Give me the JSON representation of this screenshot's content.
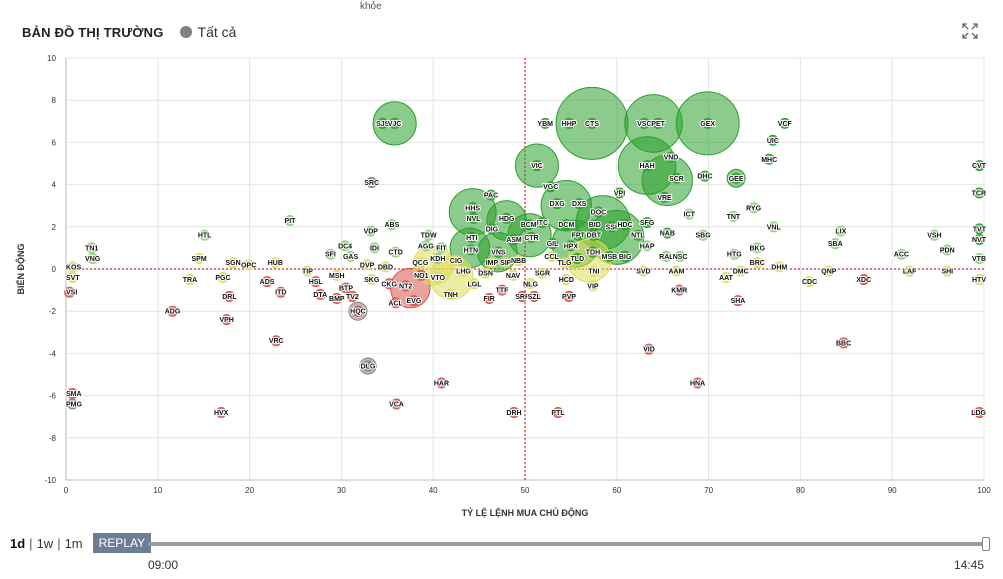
{
  "top_cut_text": "khỏe",
  "header": {
    "title": "BẢN ĐỒ THỊ TRƯỜNG",
    "filter_label": "Tất cả"
  },
  "controls": {
    "periods": [
      "1d",
      "1w",
      "1m"
    ],
    "active_period": "1d",
    "replay_label": "REPLAY",
    "time_start": "09:00",
    "time_end": "14:45",
    "progress": 1.0
  },
  "colors": {
    "green": "#2ca02c",
    "lightgreen": "#8bd17c",
    "yellow": "#dddd55",
    "red": "#d9534f",
    "gray": "#8c7f7f",
    "refline": "#cc0000"
  },
  "chart_data": {
    "type": "scatter",
    "xlabel": "TỶ LỆ LỆNH MUA CHỦ ĐỘNG",
    "ylabel": "BIẾN ĐỘNG",
    "xlim": [
      0,
      100
    ],
    "ylim": [
      -10,
      10
    ],
    "xticks": [
      0,
      10,
      20,
      30,
      40,
      50,
      60,
      70,
      80,
      90,
      100
    ],
    "yticks": [
      -10,
      -8,
      -6,
      -4,
      -2,
      0,
      2,
      4,
      6,
      8,
      10
    ],
    "grid": true,
    "reference_lines": {
      "x": 50,
      "y": 0
    },
    "points": [
      {
        "label": "SJS",
        "x": 34.5,
        "y": 6.9,
        "c": "green"
      },
      {
        "label": "VJC",
        "x": 35.8,
        "y": 6.9,
        "c": "green"
      },
      {
        "label": "YBM",
        "x": 52.2,
        "y": 6.9,
        "c": "green"
      },
      {
        "label": "HHP",
        "x": 54.8,
        "y": 6.9,
        "c": "green"
      },
      {
        "label": "CTS",
        "x": 57.3,
        "y": 6.9,
        "c": "green"
      },
      {
        "label": "VSC",
        "x": 63.0,
        "y": 6.9,
        "c": "green"
      },
      {
        "label": "PET",
        "x": 64.5,
        "y": 6.9,
        "c": "green"
      },
      {
        "label": "GEX",
        "x": 69.9,
        "y": 6.9,
        "c": "green"
      },
      {
        "label": "VCF",
        "x": 78.3,
        "y": 6.9,
        "c": "green"
      },
      {
        "label": "UIC",
        "x": 77.0,
        "y": 6.1,
        "c": "green"
      },
      {
        "label": "MHC",
        "x": 76.6,
        "y": 5.2,
        "c": "green"
      },
      {
        "label": "CVT",
        "x": 99.5,
        "y": 4.9,
        "c": "green"
      },
      {
        "label": "TCR",
        "x": 99.5,
        "y": 3.6,
        "c": "green"
      },
      {
        "label": "VIC",
        "x": 51.3,
        "y": 4.9,
        "c": "green"
      },
      {
        "label": "HAH",
        "x": 63.3,
        "y": 4.9,
        "c": "green"
      },
      {
        "label": "VND",
        "x": 65.9,
        "y": 5.3,
        "c": "green"
      },
      {
        "label": "SCR",
        "x": 66.5,
        "y": 4.3,
        "c": "green"
      },
      {
        "label": "DHC",
        "x": 69.6,
        "y": 4.4,
        "c": "green"
      },
      {
        "label": "GEE",
        "x": 73.0,
        "y": 4.3,
        "c": "green"
      },
      {
        "label": "SRC",
        "x": 33.3,
        "y": 4.1,
        "c": "gray"
      },
      {
        "label": "VGC",
        "x": 52.8,
        "y": 3.9,
        "c": "green"
      },
      {
        "label": "PAC",
        "x": 46.3,
        "y": 3.5,
        "c": "green"
      },
      {
        "label": "VPI",
        "x": 60.3,
        "y": 3.6,
        "c": "green"
      },
      {
        "label": "VRE",
        "x": 65.2,
        "y": 3.4,
        "c": "green"
      },
      {
        "label": "DXG",
        "x": 53.5,
        "y": 3.1,
        "c": "green"
      },
      {
        "label": "DXS",
        "x": 55.9,
        "y": 3.1,
        "c": "green"
      },
      {
        "label": "DOC",
        "x": 58.0,
        "y": 2.7,
        "c": "green"
      },
      {
        "label": "HHS",
        "x": 44.3,
        "y": 2.9,
        "c": "green"
      },
      {
        "label": "NVL",
        "x": 44.4,
        "y": 2.4,
        "c": "green"
      },
      {
        "label": "HDG",
        "x": 48.0,
        "y": 2.4,
        "c": "green"
      },
      {
        "label": "ITC",
        "x": 51.9,
        "y": 2.2,
        "c": "green"
      },
      {
        "label": "DCM",
        "x": 54.5,
        "y": 2.1,
        "c": "green"
      },
      {
        "label": "BID",
        "x": 57.6,
        "y": 2.1,
        "c": "green"
      },
      {
        "label": "SSI",
        "x": 59.4,
        "y": 2.0,
        "c": "green"
      },
      {
        "label": "HDC",
        "x": 60.9,
        "y": 2.1,
        "c": "green"
      },
      {
        "label": "SFG",
        "x": 63.3,
        "y": 2.2,
        "c": "green"
      },
      {
        "label": "ICT",
        "x": 67.9,
        "y": 2.6,
        "c": "lightgreen"
      },
      {
        "label": "TNT",
        "x": 72.7,
        "y": 2.5,
        "c": "lightgreen"
      },
      {
        "label": "RYG",
        "x": 74.9,
        "y": 2.9,
        "c": "lightgreen"
      },
      {
        "label": "VNL",
        "x": 77.1,
        "y": 2.0,
        "c": "lightgreen"
      },
      {
        "label": "LIX",
        "x": 84.4,
        "y": 1.8,
        "c": "lightgreen"
      },
      {
        "label": "TVT",
        "x": 99.5,
        "y": 1.9,
        "c": "green"
      },
      {
        "label": "PIT",
        "x": 24.4,
        "y": 2.3,
        "c": "lightgreen"
      },
      {
        "label": "ABS",
        "x": 35.5,
        "y": 2.1,
        "c": "lightgreen"
      },
      {
        "label": "VDP",
        "x": 33.2,
        "y": 1.8,
        "c": "lightgreen"
      },
      {
        "label": "HTL",
        "x": 15.1,
        "y": 1.6,
        "c": "lightgreen"
      },
      {
        "label": "TDW",
        "x": 39.5,
        "y": 1.6,
        "c": "lightgreen"
      },
      {
        "label": "DIG",
        "x": 46.4,
        "y": 1.9,
        "c": "green"
      },
      {
        "label": "HTI",
        "x": 44.2,
        "y": 1.5,
        "c": "green"
      },
      {
        "label": "ASM",
        "x": 48.8,
        "y": 1.4,
        "c": "green"
      },
      {
        "label": "BCM",
        "x": 50.4,
        "y": 2.1,
        "c": "green"
      },
      {
        "label": "CTR",
        "x": 50.7,
        "y": 1.5,
        "c": "green"
      },
      {
        "label": "FPT",
        "x": 55.8,
        "y": 1.6,
        "c": "green"
      },
      {
        "label": "DBT",
        "x": 57.5,
        "y": 1.6,
        "c": "green"
      },
      {
        "label": "NTL",
        "x": 62.3,
        "y": 1.6,
        "c": "green"
      },
      {
        "label": "NAB",
        "x": 65.5,
        "y": 1.7,
        "c": "green"
      },
      {
        "label": "SBG",
        "x": 69.4,
        "y": 1.6,
        "c": "lightgreen"
      },
      {
        "label": "VSH",
        "x": 94.6,
        "y": 1.6,
        "c": "lightgreen"
      },
      {
        "label": "NVT",
        "x": 99.5,
        "y": 1.4,
        "c": "green"
      },
      {
        "label": "DC4",
        "x": 30.4,
        "y": 1.1,
        "c": "lightgreen"
      },
      {
        "label": "AGG",
        "x": 39.2,
        "y": 1.1,
        "c": "lightgreen"
      },
      {
        "label": "FIT",
        "x": 40.9,
        "y": 1.0,
        "c": "lightgreen"
      },
      {
        "label": "IDI",
        "x": 33.6,
        "y": 1.0,
        "c": "lightgreen"
      },
      {
        "label": "GIL",
        "x": 53.0,
        "y": 1.2,
        "c": "green"
      },
      {
        "label": "HPX",
        "x": 55.0,
        "y": 1.1,
        "c": "green"
      },
      {
        "label": "HAP",
        "x": 63.3,
        "y": 1.1,
        "c": "lightgreen"
      },
      {
        "label": "BKG",
        "x": 75.3,
        "y": 1.0,
        "c": "lightgreen"
      },
      {
        "label": "SBA",
        "x": 83.8,
        "y": 1.2,
        "c": "lightgreen"
      },
      {
        "label": "PDN",
        "x": 96.0,
        "y": 0.9,
        "c": "lightgreen"
      },
      {
        "label": "TN1",
        "x": 2.8,
        "y": 1.0,
        "c": "lightgreen"
      },
      {
        "label": "SFI",
        "x": 28.8,
        "y": 0.7,
        "c": "lightgreen"
      },
      {
        "label": "GAS",
        "x": 31.0,
        "y": 0.6,
        "c": "lightgreen"
      },
      {
        "label": "CTD",
        "x": 35.9,
        "y": 0.8,
        "c": "lightgreen"
      },
      {
        "label": "KDH",
        "x": 40.5,
        "y": 0.5,
        "c": "lightgreen"
      },
      {
        "label": "HTN",
        "x": 44.1,
        "y": 0.9,
        "c": "green"
      },
      {
        "label": "VNS",
        "x": 47.1,
        "y": 0.8,
        "c": "green"
      },
      {
        "label": "TDH",
        "x": 57.4,
        "y": 0.8,
        "c": "green"
      },
      {
        "label": "MSB",
        "x": 59.2,
        "y": 0.6,
        "c": "green"
      },
      {
        "label": "BIG",
        "x": 60.9,
        "y": 0.6,
        "c": "green"
      },
      {
        "label": "RAL",
        "x": 65.4,
        "y": 0.6,
        "c": "lightgreen"
      },
      {
        "label": "NSC",
        "x": 66.9,
        "y": 0.6,
        "c": "lightgreen"
      },
      {
        "label": "HTG",
        "x": 72.8,
        "y": 0.7,
        "c": "lightgreen"
      },
      {
        "label": "ACC",
        "x": 91.0,
        "y": 0.7,
        "c": "lightgreen"
      },
      {
        "label": "VTB",
        "x": 99.5,
        "y": 0.5,
        "c": "lightgreen"
      },
      {
        "label": "VNG",
        "x": 2.9,
        "y": 0.5,
        "c": "lightgreen"
      },
      {
        "label": "SPM",
        "x": 14.5,
        "y": 0.5,
        "c": "yellow"
      },
      {
        "label": "SGN",
        "x": 18.2,
        "y": 0.3,
        "c": "yellow"
      },
      {
        "label": "OPC",
        "x": 19.9,
        "y": 0.2,
        "c": "yellow"
      },
      {
        "label": "HUB",
        "x": 22.8,
        "y": 0.3,
        "c": "yellow"
      },
      {
        "label": "DVP",
        "x": 32.8,
        "y": 0.2,
        "c": "yellow"
      },
      {
        "label": "DBD",
        "x": 34.8,
        "y": 0.1,
        "c": "yellow"
      },
      {
        "label": "QCG",
        "x": 38.6,
        "y": 0.3,
        "c": "yellow"
      },
      {
        "label": "CIG",
        "x": 42.5,
        "y": 0.4,
        "c": "yellow"
      },
      {
        "label": "IMP",
        "x": 46.4,
        "y": 0.3,
        "c": "yellow"
      },
      {
        "label": "SIP",
        "x": 47.9,
        "y": 0.3,
        "c": "yellow"
      },
      {
        "label": "NBB",
        "x": 49.3,
        "y": 0.4,
        "c": "yellow"
      },
      {
        "label": "CCL",
        "x": 52.9,
        "y": 0.6,
        "c": "yellow"
      },
      {
        "label": "TLG",
        "x": 54.3,
        "y": 0.3,
        "c": "yellow"
      },
      {
        "label": "TLD",
        "x": 55.7,
        "y": 0.5,
        "c": "green"
      },
      {
        "label": "BRC",
        "x": 75.3,
        "y": 0.3,
        "c": "yellow"
      },
      {
        "label": "KOS",
        "x": 0.7,
        "y": 0.1,
        "c": "yellow"
      },
      {
        "label": "TIP",
        "x": 26.3,
        "y": -0.1,
        "c": "yellow"
      },
      {
        "label": "LHG",
        "x": 43.3,
        "y": -0.1,
        "c": "yellow"
      },
      {
        "label": "DSN",
        "x": 45.7,
        "y": -0.2,
        "c": "yellow"
      },
      {
        "label": "NAV",
        "x": 48.7,
        "y": -0.3,
        "c": "yellow"
      },
      {
        "label": "SGR",
        "x": 51.9,
        "y": -0.2,
        "c": "yellow"
      },
      {
        "label": "TNI",
        "x": 57.5,
        "y": -0.1,
        "c": "yellow"
      },
      {
        "label": "SVD",
        "x": 62.9,
        "y": -0.1,
        "c": "yellow"
      },
      {
        "label": "AAM",
        "x": 66.5,
        "y": -0.1,
        "c": "yellow"
      },
      {
        "label": "DMC",
        "x": 73.5,
        "y": -0.1,
        "c": "yellow"
      },
      {
        "label": "DHM",
        "x": 77.7,
        "y": 0.1,
        "c": "yellow"
      },
      {
        "label": "QNP",
        "x": 83.1,
        "y": -0.1,
        "c": "yellow"
      },
      {
        "label": "LAF",
        "x": 91.9,
        "y": -0.1,
        "c": "yellow"
      },
      {
        "label": "SHI",
        "x": 96.0,
        "y": -0.1,
        "c": "yellow"
      },
      {
        "label": "MSH",
        "x": 29.5,
        "y": -0.3,
        "c": "yellow"
      },
      {
        "label": "SKG",
        "x": 33.3,
        "y": -0.5,
        "c": "yellow"
      },
      {
        "label": "NO1",
        "x": 38.7,
        "y": -0.3,
        "c": "red"
      },
      {
        "label": "VTO",
        "x": 40.5,
        "y": -0.4,
        "c": "yellow"
      },
      {
        "label": "AAT",
        "x": 71.9,
        "y": -0.4,
        "c": "yellow"
      },
      {
        "label": "SVT",
        "x": 0.7,
        "y": -0.4,
        "c": "yellow"
      },
      {
        "label": "TRA",
        "x": 13.5,
        "y": -0.5,
        "c": "yellow"
      },
      {
        "label": "PGC",
        "x": 17.1,
        "y": -0.4,
        "c": "yellow"
      },
      {
        "label": "HSL",
        "x": 27.2,
        "y": -0.6,
        "c": "red"
      },
      {
        "label": "ADS",
        "x": 21.9,
        "y": -0.6,
        "c": "red"
      },
      {
        "label": "CKG",
        "x": 35.2,
        "y": -0.7,
        "c": "red"
      },
      {
        "label": "NT2",
        "x": 37.0,
        "y": -0.8,
        "c": "red"
      },
      {
        "label": "LGL",
        "x": 44.5,
        "y": -0.7,
        "c": "yellow"
      },
      {
        "label": "NLG",
        "x": 50.6,
        "y": -0.7,
        "c": "yellow"
      },
      {
        "label": "HCD",
        "x": 54.5,
        "y": -0.5,
        "c": "yellow"
      },
      {
        "label": "VIP",
        "x": 57.4,
        "y": -0.8,
        "c": "yellow"
      },
      {
        "label": "CDC",
        "x": 81.0,
        "y": -0.6,
        "c": "yellow"
      },
      {
        "label": "XDC",
        "x": 86.9,
        "y": -0.5,
        "c": "red"
      },
      {
        "label": "HTV",
        "x": 99.5,
        "y": -0.5,
        "c": "yellow"
      },
      {
        "label": "BTP",
        "x": 30.5,
        "y": -0.9,
        "c": "red"
      },
      {
        "label": "ITD",
        "x": 23.4,
        "y": -1.1,
        "c": "red"
      },
      {
        "label": "TTF",
        "x": 47.5,
        "y": -1.0,
        "c": "red"
      },
      {
        "label": "KMR",
        "x": 66.8,
        "y": -1.0,
        "c": "red"
      },
      {
        "label": "VSI",
        "x": 0.4,
        "y": -1.1,
        "c": "red"
      },
      {
        "label": "DRL",
        "x": 17.8,
        "y": -1.3,
        "c": "red"
      },
      {
        "label": "DTA",
        "x": 27.7,
        "y": -1.2,
        "c": "red"
      },
      {
        "label": "TV2",
        "x": 31.2,
        "y": -1.3,
        "c": "red"
      },
      {
        "label": "TNH",
        "x": 41.9,
        "y": -1.2,
        "c": "yellow"
      },
      {
        "label": "SRF",
        "x": 49.7,
        "y": -1.3,
        "c": "red"
      },
      {
        "label": "SZL",
        "x": 51.0,
        "y": -1.3,
        "c": "red"
      },
      {
        "label": "PVP",
        "x": 54.8,
        "y": -1.3,
        "c": "red"
      },
      {
        "label": "BMP",
        "x": 29.5,
        "y": -1.4,
        "c": "red"
      },
      {
        "label": "ACL",
        "x": 35.9,
        "y": -1.6,
        "c": "red"
      },
      {
        "label": "EVG",
        "x": 37.9,
        "y": -1.5,
        "c": "red"
      },
      {
        "label": "FIR",
        "x": 46.1,
        "y": -1.4,
        "c": "red"
      },
      {
        "label": "SHA",
        "x": 73.2,
        "y": -1.5,
        "c": "red"
      },
      {
        "label": "ADG",
        "x": 11.6,
        "y": -2.0,
        "c": "red"
      },
      {
        "label": "HQC",
        "x": 31.8,
        "y": -2.0,
        "c": "red"
      },
      {
        "label": "VPH",
        "x": 17.5,
        "y": -2.4,
        "c": "red"
      },
      {
        "label": "VRC",
        "x": 22.9,
        "y": -3.4,
        "c": "red"
      },
      {
        "label": "VID",
        "x": 63.5,
        "y": -3.8,
        "c": "red"
      },
      {
        "label": "BBC",
        "x": 84.7,
        "y": -3.5,
        "c": "red"
      },
      {
        "label": "DLG",
        "x": 32.9,
        "y": -4.6,
        "c": "gray"
      },
      {
        "label": "HAR",
        "x": 40.9,
        "y": -5.4,
        "c": "red"
      },
      {
        "label": "HNA",
        "x": 68.8,
        "y": -5.4,
        "c": "red"
      },
      {
        "label": "SMA",
        "x": 0.7,
        "y": -5.9,
        "c": "red"
      },
      {
        "label": "PMG",
        "x": 0.7,
        "y": -6.4,
        "c": "gray"
      },
      {
        "label": "VCA",
        "x": 36.0,
        "y": -6.4,
        "c": "red"
      },
      {
        "label": "HVX",
        "x": 16.9,
        "y": -6.8,
        "c": "red"
      },
      {
        "label": "DRH",
        "x": 48.8,
        "y": -6.8,
        "c": "red"
      },
      {
        "label": "PTL",
        "x": 53.6,
        "y": -6.8,
        "c": "red"
      },
      {
        "label": "LDG",
        "x": 99.5,
        "y": -6.8,
        "c": "red"
      }
    ],
    "bubbles": [
      {
        "x": 35.8,
        "y": 6.9,
        "size": 2.4,
        "c": "green"
      },
      {
        "x": 57.3,
        "y": 6.9,
        "size": 4.0,
        "c": "green"
      },
      {
        "x": 64.0,
        "y": 6.9,
        "size": 3.2,
        "c": "green"
      },
      {
        "x": 69.9,
        "y": 6.9,
        "size": 3.5,
        "c": "green"
      },
      {
        "x": 51.3,
        "y": 4.9,
        "size": 2.4,
        "c": "green"
      },
      {
        "x": 63.3,
        "y": 4.9,
        "size": 3.2,
        "c": "green"
      },
      {
        "x": 65.5,
        "y": 4.2,
        "size": 2.8,
        "c": "green"
      },
      {
        "x": 44.3,
        "y": 2.7,
        "size": 2.6,
        "c": "green"
      },
      {
        "x": 48.0,
        "y": 2.3,
        "size": 2.2,
        "c": "green"
      },
      {
        "x": 54.5,
        "y": 3.0,
        "size": 2.8,
        "c": "green"
      },
      {
        "x": 58.5,
        "y": 2.2,
        "size": 3.0,
        "c": "green"
      },
      {
        "x": 60.0,
        "y": 1.5,
        "size": 3.0,
        "c": "green"
      },
      {
        "x": 50.5,
        "y": 1.6,
        "size": 2.4,
        "c": "green"
      },
      {
        "x": 55.5,
        "y": 1.2,
        "size": 2.6,
        "c": "green"
      },
      {
        "x": 47.0,
        "y": 0.8,
        "size": 2.2,
        "c": "green"
      },
      {
        "x": 44.0,
        "y": 1.0,
        "size": 2.2,
        "c": "green"
      },
      {
        "x": 57.0,
        "y": 0.4,
        "size": 2.4,
        "c": "yellow"
      },
      {
        "x": 42.0,
        "y": -0.4,
        "size": 2.4,
        "c": "yellow"
      },
      {
        "x": 37.5,
        "y": -0.9,
        "size": 2.2,
        "c": "red"
      },
      {
        "x": 40.0,
        "y": 0.2,
        "size": 2.2,
        "c": "yellow"
      },
      {
        "x": 31.8,
        "y": -2.0,
        "size": 1.0,
        "c": "gray"
      },
      {
        "x": 32.9,
        "y": -4.6,
        "size": 0.9,
        "c": "gray"
      },
      {
        "x": 73.0,
        "y": 4.3,
        "size": 1.0,
        "c": "green"
      }
    ]
  }
}
